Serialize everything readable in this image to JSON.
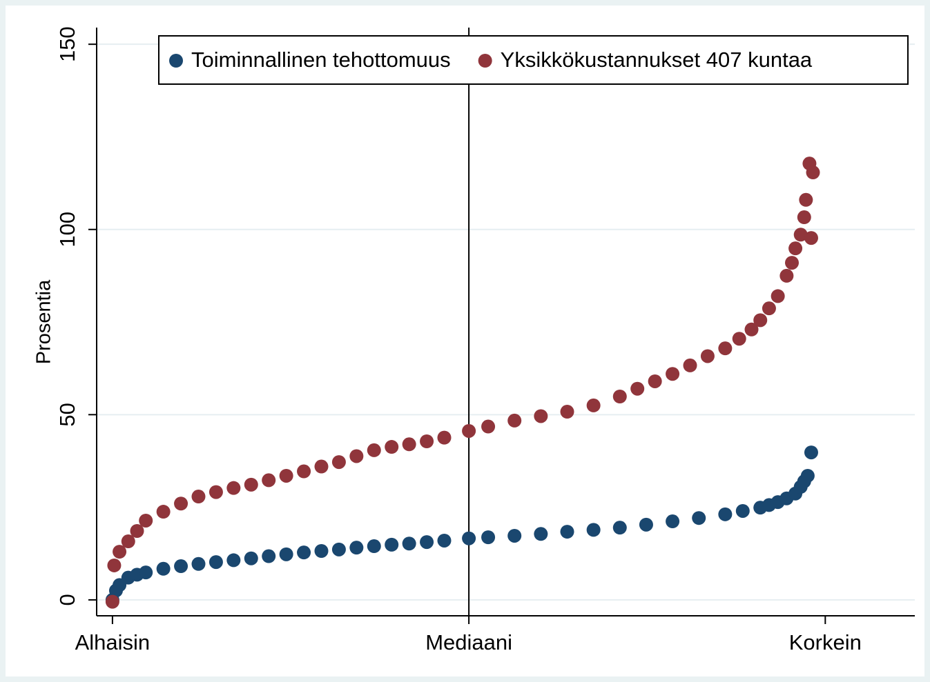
{
  "chart_data": {
    "type": "scatter",
    "ylabel": "Prosentia",
    "xlim": [
      -8,
      458
    ],
    "ylim": [
      -4.3,
      154.5
    ],
    "xticks": [
      {
        "value": 1,
        "label": "Alhaisin"
      },
      {
        "value": 204,
        "label": "Mediaani"
      },
      {
        "value": 407,
        "label": "Korkein"
      }
    ],
    "yticks": [
      0,
      50,
      100,
      150
    ],
    "grid": true,
    "xline": 204,
    "legend_position": "top",
    "series": [
      {
        "name": "Toiminnallinen tehottomuus",
        "color": "#1a476f",
        "x": [
          1,
          3,
          5,
          10,
          15,
          20,
          30,
          40,
          50,
          60,
          70,
          80,
          90,
          100,
          110,
          120,
          130,
          140,
          150,
          160,
          170,
          180,
          190,
          204,
          215,
          230,
          245,
          260,
          275,
          290,
          305,
          320,
          335,
          350,
          360,
          370,
          375,
          380,
          385,
          390,
          393,
          395,
          397,
          399
        ],
        "values": [
          0,
          2.5,
          4,
          6,
          6.8,
          7.4,
          8.4,
          9.1,
          9.7,
          10.2,
          10.7,
          11.2,
          11.8,
          12.3,
          12.8,
          13.2,
          13.6,
          14.1,
          14.5,
          14.9,
          15.2,
          15.6,
          16,
          16.6,
          16.9,
          17.3,
          17.8,
          18.4,
          18.9,
          19.5,
          20.3,
          21.2,
          22.1,
          23.1,
          24,
          24.9,
          25.6,
          26.4,
          27.4,
          28.7,
          30.5,
          32,
          33.5,
          39.8
        ]
      },
      {
        "name": "Yksikkökustannukset 407 kuntaa",
        "color": "#90353b",
        "x": [
          1,
          2,
          5,
          10,
          15,
          20,
          30,
          40,
          50,
          60,
          70,
          80,
          90,
          100,
          110,
          120,
          130,
          140,
          150,
          160,
          170,
          180,
          190,
          204,
          215,
          230,
          245,
          260,
          275,
          290,
          300,
          310,
          320,
          330,
          340,
          350,
          358,
          365,
          370,
          375,
          380,
          385,
          388,
          390,
          393,
          395,
          396,
          398,
          399,
          400
        ],
        "values": [
          -0.5,
          9.3,
          13,
          15.8,
          18.6,
          21.4,
          23.8,
          26,
          27.9,
          29.1,
          30.2,
          31.1,
          32.3,
          33.5,
          34.7,
          36,
          37.2,
          38.8,
          40.4,
          41.3,
          42,
          42.8,
          43.8,
          45.6,
          46.8,
          48.4,
          49.6,
          50.8,
          52.5,
          54.9,
          57,
          59,
          61,
          63.3,
          65.8,
          67.9,
          70.5,
          73,
          75.5,
          78.7,
          82,
          87.5,
          91,
          94.9,
          98.6,
          103.3,
          108,
          117.8,
          97.7,
          115.4
        ]
      }
    ]
  }
}
